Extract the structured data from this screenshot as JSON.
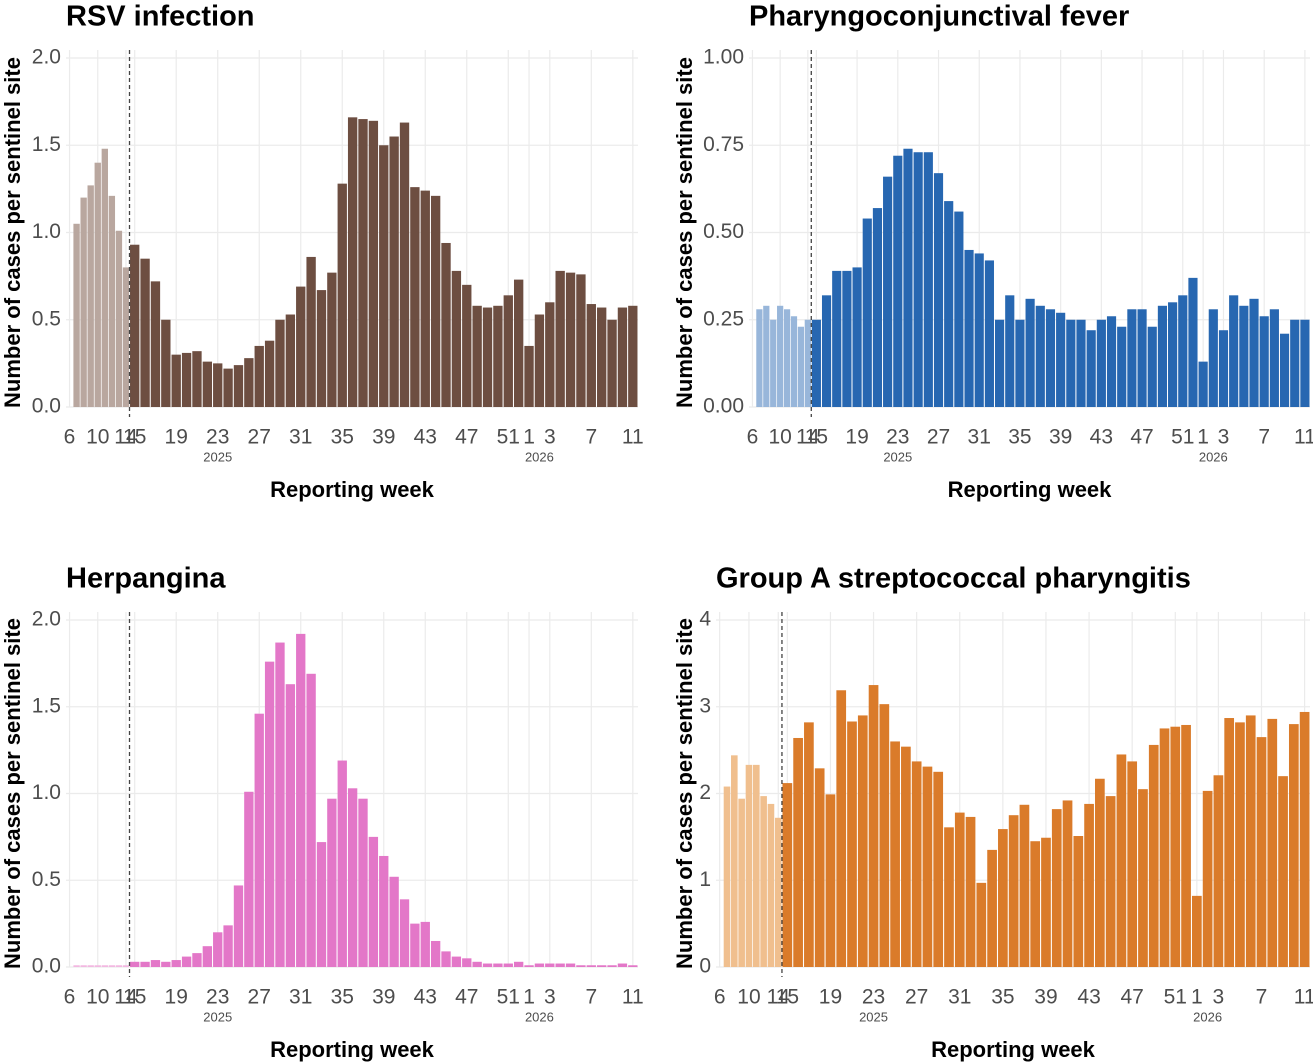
{
  "chart_data": [
    {
      "type": "bar",
      "title": "RSV infection",
      "xlabel": "Reporting week",
      "ylabel": "Number of cases per sentinel site",
      "grid": true,
      "categories": [
        "6",
        null,
        null,
        null,
        "10",
        null,
        null,
        null,
        "14",
        "15",
        null,
        null,
        null,
        "19",
        null,
        null,
        null,
        "23",
        null,
        null,
        null,
        "27",
        null,
        null,
        null,
        "31",
        null,
        null,
        null,
        "35",
        null,
        null,
        null,
        "39",
        null,
        null,
        null,
        "43",
        null,
        null,
        null,
        "47",
        null,
        null,
        null,
        "51",
        null,
        "1",
        null,
        "3",
        null,
        null,
        null,
        "7",
        null,
        null,
        null,
        "11"
      ],
      "category_sublabels": [
        null,
        null,
        null,
        null,
        null,
        null,
        null,
        null,
        null,
        null,
        null,
        null,
        null,
        null,
        null,
        null,
        null,
        "2025",
        null,
        null,
        null,
        null,
        null,
        null,
        null,
        null,
        null,
        null,
        null,
        null,
        null,
        null,
        null,
        null,
        null,
        null,
        null,
        null,
        null,
        null,
        null,
        null,
        null,
        null,
        null,
        null,
        null,
        null,
        "2026",
        null,
        null,
        null,
        null,
        null,
        null,
        null,
        null,
        null
      ],
      "series": [
        {
          "color": "#b9a79f",
          "values": [
            null,
            1.05,
            1.2,
            1.27,
            1.4,
            1.48,
            1.21,
            1.01,
            0.8,
            null,
            null,
            null,
            null,
            null,
            null,
            null,
            null,
            null,
            null,
            null,
            null,
            null,
            null,
            null,
            null,
            null,
            null,
            null,
            null,
            null,
            null,
            null,
            null,
            null,
            null,
            null,
            null,
            null,
            null,
            null,
            null,
            null,
            null,
            null,
            null,
            null,
            null,
            null,
            null,
            null,
            null,
            null,
            null,
            null,
            null,
            null,
            null,
            null
          ]
        },
        {
          "color": "#6d4e41",
          "values": [
            null,
            null,
            null,
            null,
            null,
            null,
            null,
            null,
            null,
            0.93,
            0.85,
            0.72,
            0.5,
            0.3,
            0.31,
            0.32,
            0.26,
            0.25,
            0.22,
            0.24,
            0.28,
            0.35,
            0.38,
            0.5,
            0.53,
            0.69,
            0.86,
            0.67,
            0.77,
            1.28,
            1.66,
            1.65,
            1.64,
            1.5,
            1.55,
            1.63,
            1.26,
            1.24,
            1.21,
            0.94,
            0.78,
            0.7,
            0.58,
            0.57,
            0.58,
            0.64,
            0.73,
            0.35,
            0.53,
            0.6,
            0.78,
            0.77,
            0.76,
            0.59,
            0.57,
            0.5,
            0.57,
            0.58
          ]
        }
      ],
      "ylim": [
        0,
        2
      ],
      "yticks": [
        {
          "value": 0,
          "label": "0.0"
        },
        0.5,
        {
          "value": 1,
          "label": "1.0"
        },
        1.5,
        {
          "value": 2,
          "label": "2.0"
        }
      ]
    },
    {
      "type": "bar",
      "title": "Pharyngoconjunctival fever",
      "xlabel": "Reporting week",
      "ylabel": "Number of cases per sentinel site",
      "grid": true,
      "categories": [
        "6",
        null,
        null,
        null,
        "10",
        null,
        null,
        null,
        "14",
        "15",
        null,
        null,
        null,
        "19",
        null,
        null,
        null,
        "23",
        null,
        null,
        null,
        "27",
        null,
        null,
        null,
        "31",
        null,
        null,
        null,
        "35",
        null,
        null,
        null,
        "39",
        null,
        null,
        null,
        "43",
        null,
        null,
        null,
        "47",
        null,
        null,
        null,
        "51",
        null,
        "1",
        null,
        "3",
        null,
        null,
        null,
        "7",
        null,
        null,
        null,
        "11"
      ],
      "category_sublabels": [
        null,
        null,
        null,
        null,
        null,
        null,
        null,
        null,
        null,
        null,
        null,
        null,
        null,
        null,
        null,
        null,
        null,
        "2025",
        null,
        null,
        null,
        null,
        null,
        null,
        null,
        null,
        null,
        null,
        null,
        null,
        null,
        null,
        null,
        null,
        null,
        null,
        null,
        null,
        null,
        null,
        null,
        null,
        null,
        null,
        null,
        null,
        null,
        null,
        "2026",
        null,
        null,
        null,
        null,
        null,
        null,
        null,
        null,
        null
      ],
      "series": [
        {
          "color": "#98b6da",
          "values": [
            null,
            0.28,
            0.29,
            0.25,
            0.29,
            0.28,
            0.26,
            0.23,
            0.25,
            null,
            null,
            null,
            null,
            null,
            null,
            null,
            null,
            null,
            null,
            null,
            null,
            null,
            null,
            null,
            null,
            null,
            null,
            null,
            null,
            null,
            null,
            null,
            null,
            null,
            null,
            null,
            null,
            null,
            null,
            null,
            null,
            null,
            null,
            null,
            null,
            null,
            null,
            null,
            null,
            null,
            null,
            null,
            null,
            null,
            null,
            null,
            null,
            null
          ]
        },
        {
          "color": "#2767b1",
          "values": [
            null,
            null,
            null,
            null,
            null,
            null,
            null,
            null,
            null,
            0.25,
            0.32,
            0.39,
            0.39,
            0.4,
            0.54,
            0.57,
            0.66,
            0.72,
            0.74,
            0.73,
            0.73,
            0.67,
            0.59,
            0.56,
            0.45,
            0.44,
            0.42,
            0.25,
            0.32,
            0.25,
            0.31,
            0.29,
            0.28,
            0.27,
            0.25,
            0.25,
            0.22,
            0.25,
            0.26,
            0.23,
            0.28,
            0.28,
            0.23,
            0.29,
            0.3,
            0.32,
            0.37,
            0.13,
            0.28,
            0.22,
            0.32,
            0.29,
            0.31,
            0.26,
            0.28,
            0.21,
            0.25,
            0.25
          ]
        }
      ],
      "ylim": [
        0,
        1
      ],
      "yticks": [
        {
          "value": 0,
          "label": "0.00"
        },
        0.25,
        {
          "value": 0.5,
          "label": "0.50"
        },
        0.75,
        {
          "value": 1,
          "label": "1.00"
        }
      ]
    },
    {
      "type": "bar",
      "title": "Herpangina",
      "xlabel": "Reporting week",
      "ylabel": "Number of cases per sentinel site",
      "grid": true,
      "categories": [
        "6",
        null,
        null,
        null,
        "10",
        null,
        null,
        null,
        "14",
        "15",
        null,
        null,
        null,
        "19",
        null,
        null,
        null,
        "23",
        null,
        null,
        null,
        "27",
        null,
        null,
        null,
        "31",
        null,
        null,
        null,
        "35",
        null,
        null,
        null,
        "39",
        null,
        null,
        null,
        "43",
        null,
        null,
        null,
        "47",
        null,
        null,
        null,
        "51",
        null,
        "1",
        null,
        "3",
        null,
        null,
        null,
        "7",
        null,
        null,
        null,
        "11"
      ],
      "category_sublabels": [
        null,
        null,
        null,
        null,
        null,
        null,
        null,
        null,
        null,
        null,
        null,
        null,
        null,
        null,
        null,
        null,
        null,
        "2025",
        null,
        null,
        null,
        null,
        null,
        null,
        null,
        null,
        null,
        null,
        null,
        null,
        null,
        null,
        null,
        null,
        null,
        null,
        null,
        null,
        null,
        null,
        null,
        null,
        null,
        null,
        null,
        null,
        null,
        null,
        "2026",
        null,
        null,
        null,
        null,
        null,
        null,
        null,
        null,
        null
      ],
      "series": [
        {
          "color": "#f2b8e1",
          "values": [
            null,
            0.01,
            0.01,
            0.01,
            0.01,
            0.01,
            0.01,
            0.01,
            0.01,
            null,
            null,
            null,
            null,
            null,
            null,
            null,
            null,
            null,
            null,
            null,
            null,
            null,
            null,
            null,
            null,
            null,
            null,
            null,
            null,
            null,
            null,
            null,
            null,
            null,
            null,
            null,
            null,
            null,
            null,
            null,
            null,
            null,
            null,
            null,
            null,
            null,
            null,
            null,
            null,
            null,
            null,
            null,
            null,
            null,
            null,
            null,
            null,
            null
          ]
        },
        {
          "color": "#e377c8",
          "values": [
            null,
            null,
            null,
            null,
            null,
            null,
            null,
            null,
            null,
            0.03,
            0.03,
            0.04,
            0.03,
            0.04,
            0.06,
            0.08,
            0.12,
            0.2,
            0.24,
            0.47,
            1.01,
            1.46,
            1.76,
            1.87,
            1.63,
            1.92,
            1.69,
            0.72,
            0.97,
            1.19,
            1.03,
            0.97,
            0.75,
            0.64,
            0.52,
            0.39,
            0.25,
            0.26,
            0.15,
            0.09,
            0.06,
            0.05,
            0.03,
            0.02,
            0.02,
            0.02,
            0.03,
            0.01,
            0.02,
            0.02,
            0.02,
            0.02,
            0.01,
            0.01,
            0.01,
            0.01,
            0.02,
            0.01
          ]
        }
      ],
      "ylim": [
        0,
        2
      ],
      "yticks": [
        {
          "value": 0,
          "label": "0.0"
        },
        0.5,
        {
          "value": 1,
          "label": "1.0"
        },
        1.5,
        {
          "value": 2,
          "label": "2.0"
        }
      ]
    },
    {
      "type": "bar",
      "title": "Group A streptococcal pharyngitis",
      "xlabel": "Reporting week",
      "ylabel": "Number of cases per sentinel site",
      "grid": true,
      "categories": [
        "6",
        null,
        null,
        null,
        "10",
        null,
        null,
        null,
        "14",
        "15",
        null,
        null,
        null,
        "19",
        null,
        null,
        null,
        "23",
        null,
        null,
        null,
        "27",
        null,
        null,
        null,
        "31",
        null,
        null,
        null,
        "35",
        null,
        null,
        null,
        "39",
        null,
        null,
        null,
        "43",
        null,
        null,
        null,
        "47",
        null,
        null,
        null,
        "51",
        null,
        "1",
        null,
        "3",
        null,
        null,
        null,
        "7",
        null,
        null,
        null,
        "11"
      ],
      "category_sublabels": [
        null,
        null,
        null,
        null,
        null,
        null,
        null,
        null,
        null,
        null,
        null,
        null,
        null,
        null,
        null,
        null,
        null,
        "2025",
        null,
        null,
        null,
        null,
        null,
        null,
        null,
        null,
        null,
        null,
        null,
        null,
        null,
        null,
        null,
        null,
        null,
        null,
        null,
        null,
        null,
        null,
        null,
        null,
        null,
        null,
        null,
        null,
        null,
        null,
        "2026",
        null,
        null,
        null,
        null,
        null,
        null,
        null,
        null,
        null
      ],
      "series": [
        {
          "color": "#f0bf8e",
          "values": [
            null,
            2.08,
            2.44,
            1.94,
            2.33,
            2.33,
            1.97,
            1.88,
            1.72,
            null,
            null,
            null,
            null,
            null,
            null,
            null,
            null,
            null,
            null,
            null,
            null,
            null,
            null,
            null,
            null,
            null,
            null,
            null,
            null,
            null,
            null,
            null,
            null,
            null,
            null,
            null,
            null,
            null,
            null,
            null,
            null,
            null,
            null,
            null,
            null,
            null,
            null,
            null,
            null,
            null,
            null,
            null,
            null,
            null,
            null,
            null,
            null,
            null
          ]
        },
        {
          "color": "#da7b2a",
          "values": [
            null,
            null,
            null,
            null,
            null,
            null,
            null,
            null,
            null,
            2.12,
            2.64,
            2.82,
            2.29,
            1.99,
            3.19,
            2.83,
            2.9,
            3.25,
            3.03,
            2.6,
            2.54,
            2.37,
            2.31,
            2.25,
            1.61,
            1.78,
            1.73,
            0.97,
            1.35,
            1.59,
            1.75,
            1.87,
            1.45,
            1.49,
            1.82,
            1.92,
            1.51,
            1.88,
            2.17,
            1.97,
            2.45,
            2.37,
            2.05,
            2.56,
            2.75,
            2.77,
            2.79,
            0.82,
            2.03,
            2.21,
            2.87,
            2.82,
            2.9,
            2.65,
            2.86,
            2.2,
            2.8,
            2.94
          ]
        }
      ],
      "ylim": [
        0,
        4
      ],
      "yticks": [
        0,
        1,
        2,
        3,
        4
      ]
    }
  ]
}
